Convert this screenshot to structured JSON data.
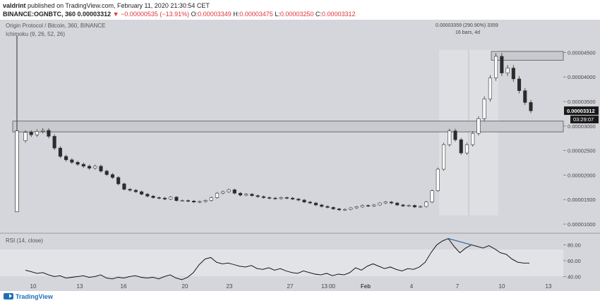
{
  "header": {
    "user": "valdrint",
    "published": "published on TradingView.com, February 11, 2020 21:30:54 CET",
    "symbol_line": "BINANCE:OGNBTC, 360",
    "price": "0.00003312",
    "change": "−0.00000535 (−13.91%)",
    "o_label": "O:",
    "o_value": "0.00003349",
    "h_label": "H:",
    "h_value": "0.00003475",
    "l_label": "L:",
    "l_value": "0.00003250",
    "c_label": "C:",
    "c_value": "0.00003312"
  },
  "colors": {
    "background": "#d5d6db",
    "candle_up": "#ffffff",
    "candle_down": "#2b2b2b",
    "zone_fill": "#c9cacf",
    "zone_border": "#555555",
    "rsi_line": "#000000",
    "divergence_line": "#1e4fa0",
    "price_label_bg": "#1a1a1a"
  },
  "chart_data": [
    {
      "type": "candlestick",
      "title": "Origin Protocol / Bitcoin, 360, BINANCE",
      "indicator": "Ichimoku (9, 26, 52, 26)",
      "y_ticks": [
        "0.00004500",
        "0.00004000",
        "0.00003500",
        "0.00003000",
        "0.00002500",
        "0.00002000",
        "0.00001500",
        "0.00001000"
      ],
      "ylim": [
        9e-06,
        4.85e-05
      ],
      "x_ticks": [
        "10",
        "13",
        "16",
        "20",
        "23",
        "27",
        "13:00",
        "Feb",
        "4",
        "7",
        "10",
        "13"
      ],
      "last_price": "0.00003312",
      "countdown": "03:29:07",
      "measure_label_1": "0.00003359 (290.90%) 3359",
      "measure_label_2": "16 bars, 4d",
      "zones": [
        {
          "name": "support-resistance",
          "low": 2.88e-05,
          "high": 3.1e-05
        },
        {
          "name": "resistance",
          "low": 4.34e-05,
          "high": 4.52e-05
        }
      ],
      "candles_close": [
        2.87e-05,
        2.82e-05,
        2.89e-05,
        2.91e-05,
        2.79e-05,
        2.55e-05,
        2.38e-05,
        2.31e-05,
        2.26e-05,
        2.22e-05,
        2.18e-05,
        2.14e-05,
        2.18e-05,
        2.08e-05,
        2.01e-05,
        1.95e-05,
        1.82e-05,
        1.71e-05,
        1.69e-05,
        1.66e-05,
        1.61e-05,
        1.57e-05,
        1.54e-05,
        1.53e-05,
        1.51e-05,
        1.55e-05,
        1.48e-05,
        1.48e-05,
        1.47e-05,
        1.45e-05,
        1.46e-05,
        1.48e-05,
        1.54e-05,
        1.63e-05,
        1.66e-05,
        1.7e-05,
        1.63e-05,
        1.59e-05,
        1.61e-05,
        1.58e-05,
        1.56e-05,
        1.54e-05,
        1.53e-05,
        1.52e-05,
        1.54e-05,
        1.53e-05,
        1.51e-05,
        1.49e-05,
        1.45e-05,
        1.43e-05,
        1.39e-05,
        1.36e-05,
        1.34e-05,
        1.31e-05,
        1.29e-05,
        1.3e-05,
        1.33e-05,
        1.35e-05,
        1.38e-05,
        1.37e-05,
        1.39e-05,
        1.43e-05,
        1.45e-05,
        1.43e-05,
        1.39e-05,
        1.37e-05,
        1.38e-05,
        1.35e-05,
        1.36e-05,
        1.45e-05,
        1.68e-05,
        2.12e-05,
        2.62e-05,
        2.9e-05,
        2.72e-05,
        2.45e-05,
        2.62e-05,
        2.85e-05,
        3.15e-05,
        3.55e-05,
        3.98e-05,
        4.42e-05,
        4.08e-05,
        4.18e-05,
        3.96e-05,
        3.72e-05,
        3.48e-05,
        3.31e-05
      ],
      "rsi": {
        "label": "RSI (14, close)",
        "y_ticks": [
          "80.00",
          "60.00",
          "40.00"
        ],
        "ylim": [
          35,
          92
        ],
        "values": [
          48,
          46,
          44,
          45,
          42,
          40,
          41,
          38,
          39,
          40,
          41,
          39,
          40,
          42,
          38,
          37,
          39,
          38,
          40,
          41,
          39,
          38,
          39,
          37,
          40,
          42,
          38,
          36,
          39,
          45,
          55,
          62,
          64,
          58,
          56,
          57,
          55,
          53,
          52,
          54,
          50,
          49,
          51,
          48,
          50,
          47,
          45,
          44,
          47,
          45,
          43,
          42,
          44,
          41,
          43,
          42,
          45,
          51,
          48,
          53,
          56,
          53,
          50,
          52,
          49,
          47,
          50,
          49,
          52,
          58,
          70,
          80,
          85,
          88,
          78,
          70,
          76,
          80,
          78,
          76,
          79,
          75,
          70,
          68,
          62,
          58,
          57,
          57
        ]
      }
    }
  ]
}
